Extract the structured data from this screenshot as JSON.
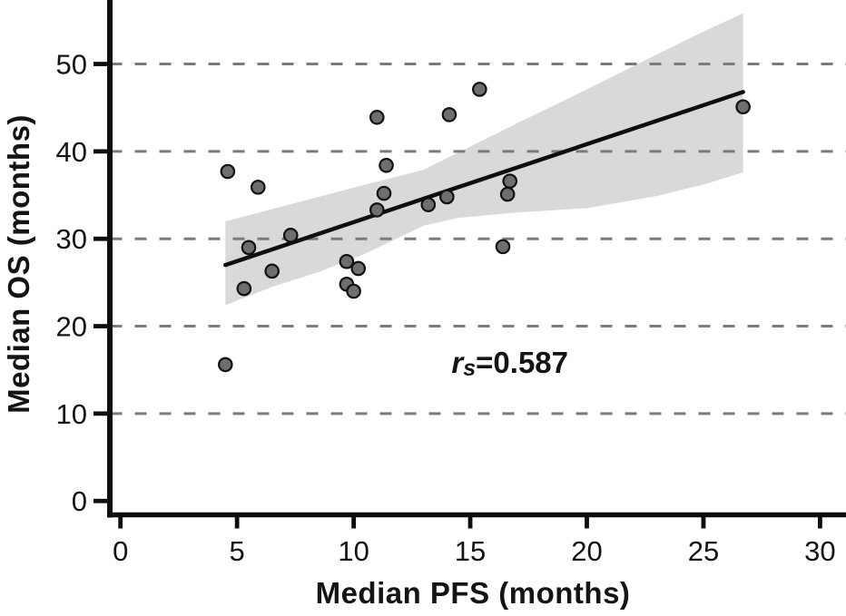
{
  "chart_data": {
    "type": "scatter",
    "title": "",
    "xlabel": "Median PFS (months)",
    "ylabel": "Median OS (months)",
    "xlim": [
      0,
      31
    ],
    "ylim": [
      0,
      57
    ],
    "xticks": [
      0,
      5,
      10,
      15,
      20,
      25,
      30
    ],
    "yticks": [
      0,
      10,
      20,
      30,
      40,
      50
    ],
    "gridlines_y": [
      10,
      20,
      30,
      40,
      50
    ],
    "grid_style": "horizontal-dashed",
    "legend": "none",
    "annotation": {
      "symbol": "r",
      "subscript": "s",
      "value_text": "=0.587",
      "full_text": "rs=0.587",
      "x": 16.7,
      "y": 15.8
    },
    "points": [
      {
        "x": 4.6,
        "y": 37.7
      },
      {
        "x": 5.9,
        "y": 35.9
      },
      {
        "x": 11.0,
        "y": 43.9
      },
      {
        "x": 11.4,
        "y": 38.4
      },
      {
        "x": 11.3,
        "y": 35.2
      },
      {
        "x": 11.0,
        "y": 33.3
      },
      {
        "x": 7.3,
        "y": 30.4
      },
      {
        "x": 5.5,
        "y": 29.0
      },
      {
        "x": 6.5,
        "y": 26.3
      },
      {
        "x": 5.3,
        "y": 24.3
      },
      {
        "x": 9.7,
        "y": 27.4
      },
      {
        "x": 10.2,
        "y": 26.6
      },
      {
        "x": 9.7,
        "y": 24.8
      },
      {
        "x": 10.0,
        "y": 24.0
      },
      {
        "x": 15.4,
        "y": 47.1
      },
      {
        "x": 14.1,
        "y": 44.2
      },
      {
        "x": 26.7,
        "y": 45.1
      },
      {
        "x": 16.7,
        "y": 36.6
      },
      {
        "x": 16.6,
        "y": 35.1
      },
      {
        "x": 13.2,
        "y": 33.9
      },
      {
        "x": 14.0,
        "y": 34.8
      },
      {
        "x": 16.4,
        "y": 29.1
      },
      {
        "x": 4.5,
        "y": 15.6
      }
    ],
    "regression_line": {
      "x1": 4.5,
      "y1": 27.0,
      "x2": 26.7,
      "y2": 46.8
    },
    "confidence_band": {
      "x": [
        4.5,
        6.5,
        8.5,
        10.5,
        13.0,
        14.5,
        17.0,
        20.0,
        23.0,
        25.0,
        26.7
      ],
      "top": [
        32.0,
        33.4,
        34.8,
        36.2,
        37.9,
        39.9,
        43.2,
        47.1,
        51.1,
        53.7,
        55.8
      ],
      "bottom": [
        22.4,
        24.5,
        26.2,
        28.3,
        31.5,
        32.4,
        33.0,
        33.5,
        34.9,
        36.2,
        37.6
      ]
    },
    "colors": {
      "background": "#ffffff",
      "band": "#d9d9d9",
      "point_fill": "#6e6e6e",
      "point_stroke": "#111111",
      "gridline": "#7b7b7b",
      "regression": "#0e0e0e",
      "axis": "#0e0e0e",
      "text": "#141414"
    }
  }
}
